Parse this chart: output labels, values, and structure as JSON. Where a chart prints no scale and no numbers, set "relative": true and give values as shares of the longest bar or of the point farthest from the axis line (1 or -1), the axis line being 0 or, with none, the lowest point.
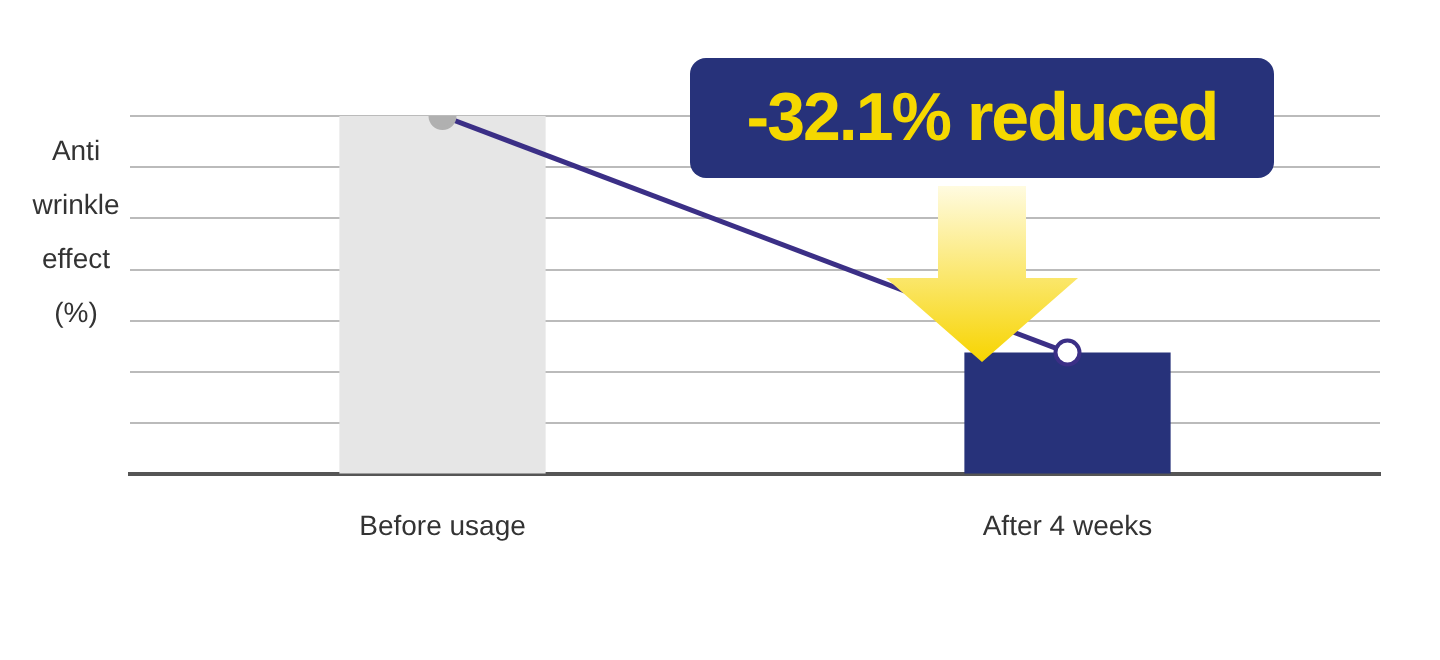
{
  "chart_data": {
    "type": "bar",
    "ylabel": "Anti wrinkle effect (%)",
    "categories": [
      "Before usage",
      "After 4 weeks"
    ],
    "relative": true,
    "grid": "y",
    "legend": false,
    "series": [
      {
        "colors": [
          "#e6e6e6",
          "#27327a"
        ],
        "values": [
          1,
          0.34
        ]
      },
      {
        "type": "line",
        "color": "#3b2f86",
        "values": [
          1,
          0.34
        ],
        "marker": "circle"
      }
    ],
    "annotations": [
      "-32.1% reduced"
    ]
  }
}
